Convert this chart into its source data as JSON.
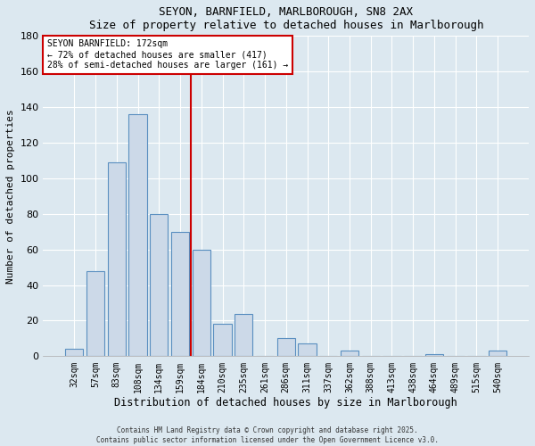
{
  "title": "SEYON, BARNFIELD, MARLBOROUGH, SN8 2AX",
  "subtitle": "Size of property relative to detached houses in Marlborough",
  "xlabel": "Distribution of detached houses by size in Marlborough",
  "ylabel": "Number of detached properties",
  "categories": [
    "32sqm",
    "57sqm",
    "83sqm",
    "108sqm",
    "134sqm",
    "159sqm",
    "184sqm",
    "210sqm",
    "235sqm",
    "261sqm",
    "286sqm",
    "311sqm",
    "337sqm",
    "362sqm",
    "388sqm",
    "413sqm",
    "438sqm",
    "464sqm",
    "489sqm",
    "515sqm",
    "540sqm"
  ],
  "values": [
    4,
    48,
    109,
    136,
    80,
    70,
    60,
    18,
    24,
    0,
    10,
    7,
    0,
    3,
    0,
    0,
    0,
    1,
    0,
    0,
    3
  ],
  "bar_color": "#ccd9e8",
  "bar_edge_color": "#5a8fc0",
  "ylim": [
    0,
    180
  ],
  "yticks": [
    0,
    20,
    40,
    60,
    80,
    100,
    120,
    140,
    160,
    180
  ],
  "vline_x_index": 5.5,
  "vline_color": "#cc0000",
  "annotation_title": "SEYON BARNFIELD: 172sqm",
  "annotation_line1": "← 72% of detached houses are smaller (417)",
  "annotation_line2": "28% of semi-detached houses are larger (161) →",
  "annotation_box_color": "#cc0000",
  "footer_line1": "Contains HM Land Registry data © Crown copyright and database right 2025.",
  "footer_line2": "Contains public sector information licensed under the Open Government Licence v3.0.",
  "background_color": "#dce8f0",
  "plot_background_color": "#dce8f0",
  "grid_color": "#ffffff"
}
